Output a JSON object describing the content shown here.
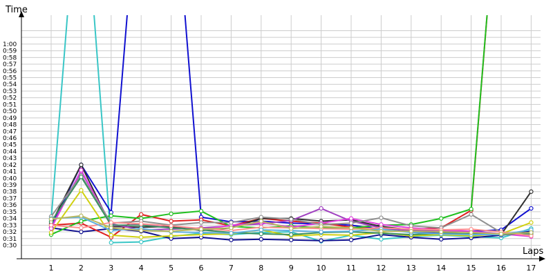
{
  "chart_data": {
    "type": "line",
    "ylabel": "Time",
    "xlabel": "Laps",
    "x": [
      1,
      2,
      3,
      4,
      5,
      6,
      7,
      8,
      9,
      10,
      11,
      12,
      13,
      14,
      15,
      16,
      17
    ],
    "ylim_seconds": [
      29,
      62
    ],
    "y_tick_labels": [
      "0:30",
      "0:31",
      "0:32",
      "0:33",
      "0:34",
      "0:35",
      "0:36",
      "0:37",
      "0:38",
      "0:39",
      "0:40",
      "0:41",
      "0:42",
      "0:43",
      "0:44",
      "0:45",
      "0:46",
      "0:47",
      "0:48",
      "0:49",
      "0:50",
      "0:51",
      "0:52",
      "0:53",
      "0:54",
      "0:55",
      "0:56",
      "0:57",
      "0:58",
      "0:59",
      "1:00"
    ],
    "grid": true,
    "series": [
      {
        "color": "#39c6c6",
        "values": [
          33.8,
          90,
          30.4,
          30.5,
          31.3,
          31.8,
          31.6,
          31.9,
          32.0,
          30.6,
          31.5,
          30.9,
          31.3,
          31.5,
          31.3,
          31.1,
          32.5
        ]
      },
      {
        "color": "#1010d0",
        "values": [
          32.7,
          42.0,
          34.9,
          90,
          90,
          34.2,
          33.5,
          33.6,
          33.3,
          33.2,
          33.0,
          32.4,
          32.0,
          31.8,
          32.1,
          32.3,
          35.5
        ]
      },
      {
        "color": "#101090",
        "values": [
          32.6,
          32.0,
          32.5,
          32.1,
          31.0,
          31.2,
          30.8,
          30.9,
          30.8,
          30.7,
          30.8,
          31.6,
          31.2,
          30.9,
          31.1,
          31.5,
          32.1
        ]
      },
      {
        "color": "#e02020",
        "values": [
          33.0,
          33.3,
          31.2,
          34.6,
          33.6,
          33.8,
          32.9,
          34.0,
          33.6,
          33.3,
          32.7,
          32.4,
          32.4,
          32.6,
          35.2,
          90,
          null
        ]
      },
      {
        "color": "#20c020",
        "values": [
          31.6,
          33.6,
          34.4,
          34.0,
          34.7,
          35.1,
          32.8,
          32.6,
          32.9,
          32.6,
          32.6,
          33.0,
          33.1,
          34.0,
          35.4,
          90,
          null
        ]
      },
      {
        "color": "#303030",
        "values": [
          33.2,
          42.0,
          32.8,
          32.7,
          32.8,
          32.2,
          32.6,
          34.0,
          34.0,
          33.6,
          33.8,
          32.8,
          32.3,
          32.2,
          31.9,
          31.6,
          38.0
        ]
      },
      {
        "color": "#d0d010",
        "values": [
          31.9,
          38.2,
          31.5,
          31.2,
          31.4,
          31.6,
          31.7,
          32.3,
          31.4,
          31.6,
          31.5,
          31.9,
          31.4,
          31.6,
          31.4,
          31.7,
          33.4
        ]
      },
      {
        "color": "#a040c0",
        "values": [
          32.7,
          41.0,
          33.2,
          32.3,
          32.4,
          32.6,
          32.9,
          33.2,
          33.7,
          35.5,
          33.6,
          32.6,
          32.2,
          32.1,
          32.0,
          31.7,
          31.6
        ]
      },
      {
        "color": "#e040e0",
        "values": [
          32.5,
          41.2,
          32.9,
          33.1,
          32.6,
          32.3,
          33.0,
          33.4,
          32.7,
          33.3,
          34.0,
          33.1,
          32.6,
          32.3,
          32.1,
          31.7,
          31.3
        ]
      },
      {
        "color": "#909090",
        "values": [
          34.3,
          40.4,
          33.3,
          33.6,
          33.0,
          33.4,
          33.4,
          34.2,
          33.9,
          33.1,
          33.3,
          34.1,
          32.9,
          32.6,
          34.6,
          31.9,
          31.6
        ]
      },
      {
        "color": "#3a9060",
        "values": [
          33.5,
          40.2,
          33.0,
          33.0,
          32.6,
          32.3,
          31.9,
          31.7,
          31.6,
          31.9,
          32.0,
          31.8,
          31.6,
          31.8,
          31.7,
          31.6,
          31.8
        ]
      },
      {
        "color": "#ff9090",
        "values": [
          33.0,
          32.6,
          33.4,
          33.2,
          32.9,
          32.5,
          32.2,
          32.7,
          32.6,
          32.5,
          32.4,
          32.6,
          32.4,
          32.3,
          32.4,
          32.0,
          31.4
        ]
      },
      {
        "color": "#60b0e0",
        "values": [
          34.0,
          34.2,
          32.2,
          32.5,
          32.0,
          31.9,
          31.8,
          32.3,
          32.2,
          32.0,
          32.1,
          32.4,
          31.9,
          31.7,
          31.6,
          31.6,
          32.3
        ]
      },
      {
        "color": "#b8b860",
        "values": [
          33.9,
          34.4,
          32.6,
          32.2,
          32.1,
          32.4,
          32.6,
          33.6,
          32.5,
          32.8,
          32.6,
          32.1,
          32.1,
          32.0,
          31.9,
          31.7,
          31.9
        ]
      }
    ]
  }
}
